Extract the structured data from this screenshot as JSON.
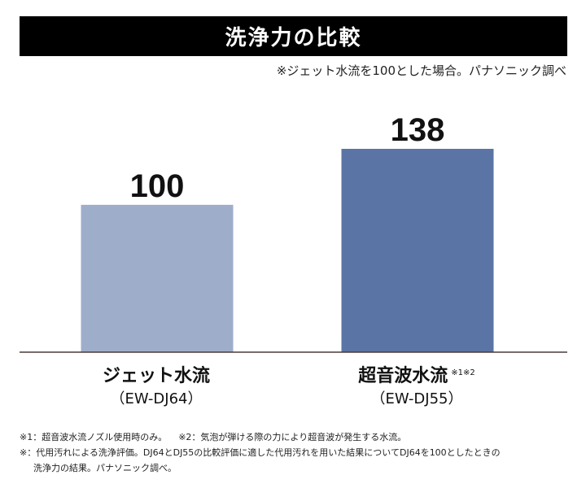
{
  "header": {
    "title": "洗浄力の比較",
    "source_note": "※ジェット水流を100とした場合。パナソニック調べ"
  },
  "chart_data": {
    "type": "bar",
    "categories": [
      "ジェット水流",
      "超音波水流"
    ],
    "models": [
      "（EW-DJ64）",
      "（EW-DJ55）"
    ],
    "category_notes": [
      "",
      "※1※2"
    ],
    "values": [
      100,
      138
    ],
    "value_labels": [
      "100",
      "138"
    ],
    "colors": [
      "#9eadca",
      "#5a74a5"
    ],
    "ylim": [
      0,
      145
    ],
    "grid": false,
    "legend": "none"
  },
  "footnotes": {
    "note1": "※1：超音波水流ノズル使用時のみ。",
    "note2": "※2：気泡が弾ける際の力により超音波が発生する水流。",
    "note3_line1": "※：代用汚れによる洗浄評価。DJ64とDJ55の比較評価に適した代用汚れを用いた結果についてDJ64を100としたときの",
    "note3_line2": "洗浄力の結果。パナソニック調べ。"
  }
}
